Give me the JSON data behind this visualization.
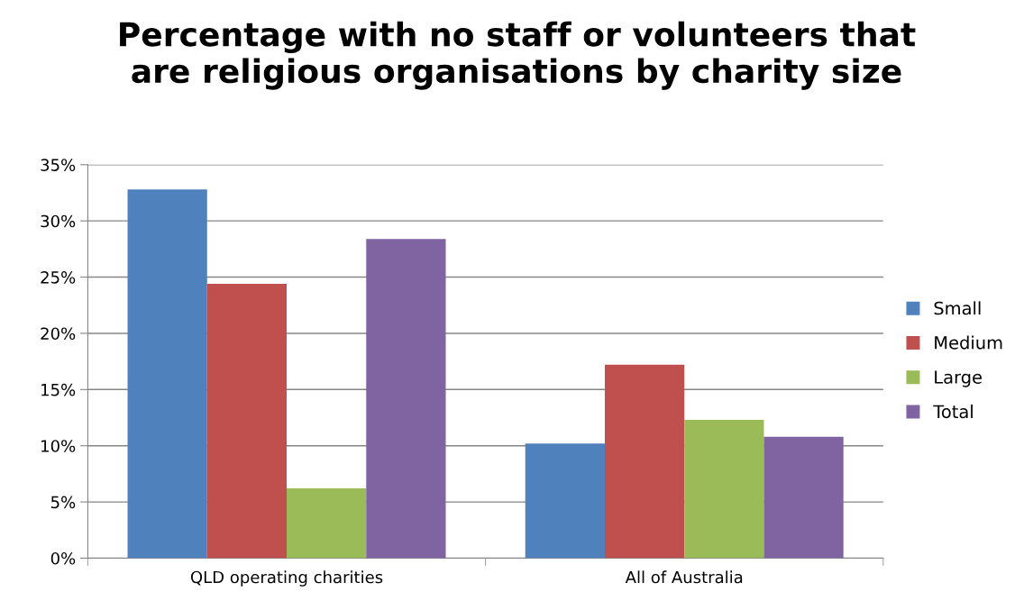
{
  "chart_data": {
    "type": "bar",
    "title": "Percentage with no staff or volunteers that\nare religious organisations by charity size",
    "categories": [
      "QLD operating charities",
      "All of Australia"
    ],
    "series": [
      {
        "name": "Small",
        "color": "#4f81bd",
        "values": [
          32.8,
          10.2
        ]
      },
      {
        "name": "Medium",
        "color": "#c0504d",
        "values": [
          24.4,
          17.2
        ]
      },
      {
        "name": "Large",
        "color": "#9bbb59",
        "values": [
          6.2,
          12.3
        ]
      },
      {
        "name": "Total",
        "color": "#8064a2",
        "values": [
          28.4,
          10.8
        ]
      }
    ],
    "ylim": [
      0,
      35
    ],
    "yticks": [
      {
        "value": 0,
        "label": "0%"
      },
      {
        "value": 5,
        "label": "5%"
      },
      {
        "value": 10,
        "label": "10%"
      },
      {
        "value": 15,
        "label": "15%"
      },
      {
        "value": 20,
        "label": "20%"
      },
      {
        "value": 25,
        "label": "25%"
      },
      {
        "value": 30,
        "label": "30%"
      },
      {
        "value": 35,
        "label": "35%"
      }
    ],
    "grid": "y",
    "legend": "right"
  }
}
